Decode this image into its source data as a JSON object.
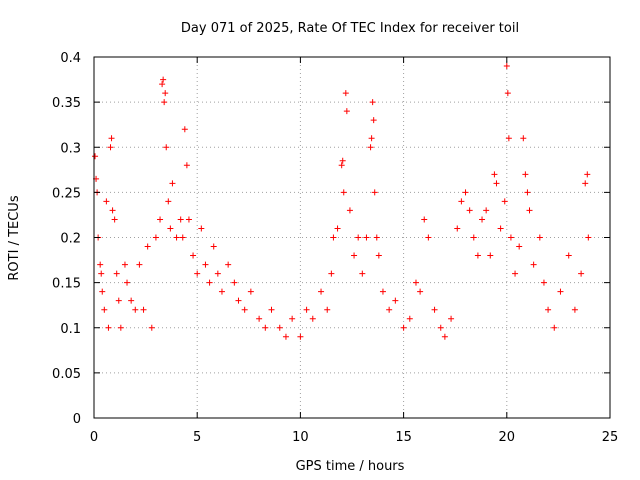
{
  "chart_data": {
    "type": "scatter",
    "title": "Day 071 of 2025, Rate Of TEC Index for receiver toil",
    "xlabel": "GPS time / hours",
    "ylabel": "ROTI / TECUs",
    "xlim": [
      0,
      25
    ],
    "ylim": [
      0,
      0.4
    ],
    "xticks": [
      "0",
      "5",
      "10",
      "15",
      "20",
      "25"
    ],
    "yticks": [
      "0",
      "0.05",
      "0.1",
      "0.15",
      "0.2",
      "0.25",
      "0.3",
      "0.35",
      "0.4"
    ],
    "grid": true,
    "marker": "plus",
    "color": "#ff0000",
    "series": [
      {
        "points": [
          [
            0.05,
            0.29
          ],
          [
            0.1,
            0.265
          ],
          [
            0.15,
            0.25
          ],
          [
            0.2,
            0.2
          ],
          [
            0.3,
            0.17
          ],
          [
            0.35,
            0.16
          ],
          [
            0.4,
            0.14
          ],
          [
            0.5,
            0.12
          ],
          [
            0.6,
            0.24
          ],
          [
            0.7,
            0.1
          ],
          [
            0.8,
            0.3
          ],
          [
            0.85,
            0.31
          ],
          [
            0.9,
            0.23
          ],
          [
            1.0,
            0.22
          ],
          [
            1.1,
            0.16
          ],
          [
            1.2,
            0.13
          ],
          [
            1.3,
            0.1
          ],
          [
            1.5,
            0.17
          ],
          [
            1.6,
            0.15
          ],
          [
            1.8,
            0.13
          ],
          [
            2.0,
            0.12
          ],
          [
            2.2,
            0.17
          ],
          [
            2.4,
            0.12
          ],
          [
            2.6,
            0.19
          ],
          [
            2.8,
            0.1
          ],
          [
            3.0,
            0.2
          ],
          [
            3.2,
            0.22
          ],
          [
            3.3,
            0.37
          ],
          [
            3.35,
            0.375
          ],
          [
            3.4,
            0.35
          ],
          [
            3.45,
            0.36
          ],
          [
            3.5,
            0.3
          ],
          [
            3.6,
            0.24
          ],
          [
            3.7,
            0.21
          ],
          [
            3.8,
            0.26
          ],
          [
            4.0,
            0.2
          ],
          [
            4.2,
            0.22
          ],
          [
            4.3,
            0.2
          ],
          [
            4.4,
            0.32
          ],
          [
            4.5,
            0.28
          ],
          [
            4.6,
            0.22
          ],
          [
            4.8,
            0.18
          ],
          [
            5.0,
            0.16
          ],
          [
            5.2,
            0.21
          ],
          [
            5.4,
            0.17
          ],
          [
            5.6,
            0.15
          ],
          [
            5.8,
            0.19
          ],
          [
            6.0,
            0.16
          ],
          [
            6.2,
            0.14
          ],
          [
            6.5,
            0.17
          ],
          [
            6.8,
            0.15
          ],
          [
            7.0,
            0.13
          ],
          [
            7.3,
            0.12
          ],
          [
            7.6,
            0.14
          ],
          [
            8.0,
            0.11
          ],
          [
            8.3,
            0.1
          ],
          [
            8.6,
            0.12
          ],
          [
            9.0,
            0.1
          ],
          [
            9.3,
            0.09
          ],
          [
            9.6,
            0.11
          ],
          [
            10.0,
            0.09
          ],
          [
            10.3,
            0.12
          ],
          [
            10.6,
            0.11
          ],
          [
            11.0,
            0.14
          ],
          [
            11.3,
            0.12
          ],
          [
            11.5,
            0.16
          ],
          [
            11.6,
            0.2
          ],
          [
            11.8,
            0.21
          ],
          [
            12.0,
            0.28
          ],
          [
            12.05,
            0.285
          ],
          [
            12.1,
            0.25
          ],
          [
            12.2,
            0.36
          ],
          [
            12.25,
            0.34
          ],
          [
            12.4,
            0.23
          ],
          [
            12.6,
            0.18
          ],
          [
            12.8,
            0.2
          ],
          [
            13.0,
            0.16
          ],
          [
            13.2,
            0.2
          ],
          [
            13.4,
            0.3
          ],
          [
            13.45,
            0.31
          ],
          [
            13.5,
            0.35
          ],
          [
            13.55,
            0.33
          ],
          [
            13.6,
            0.25
          ],
          [
            13.7,
            0.2
          ],
          [
            13.8,
            0.18
          ],
          [
            14.0,
            0.14
          ],
          [
            14.3,
            0.12
          ],
          [
            14.6,
            0.13
          ],
          [
            15.0,
            0.1
          ],
          [
            15.3,
            0.11
          ],
          [
            15.6,
            0.15
          ],
          [
            15.8,
            0.14
          ],
          [
            16.0,
            0.22
          ],
          [
            16.2,
            0.2
          ],
          [
            16.5,
            0.12
          ],
          [
            16.8,
            0.1
          ],
          [
            17.0,
            0.09
          ],
          [
            17.3,
            0.11
          ],
          [
            17.6,
            0.21
          ],
          [
            17.8,
            0.24
          ],
          [
            18.0,
            0.25
          ],
          [
            18.2,
            0.23
          ],
          [
            18.4,
            0.2
          ],
          [
            18.6,
            0.18
          ],
          [
            18.8,
            0.22
          ],
          [
            19.0,
            0.23
          ],
          [
            19.2,
            0.18
          ],
          [
            19.4,
            0.27
          ],
          [
            19.5,
            0.26
          ],
          [
            19.7,
            0.21
          ],
          [
            19.9,
            0.24
          ],
          [
            20.0,
            0.39
          ],
          [
            20.05,
            0.36
          ],
          [
            20.1,
            0.31
          ],
          [
            20.2,
            0.2
          ],
          [
            20.4,
            0.16
          ],
          [
            20.6,
            0.19
          ],
          [
            20.8,
            0.31
          ],
          [
            20.9,
            0.27
          ],
          [
            21.0,
            0.25
          ],
          [
            21.1,
            0.23
          ],
          [
            21.3,
            0.17
          ],
          [
            21.6,
            0.2
          ],
          [
            21.8,
            0.15
          ],
          [
            22.0,
            0.12
          ],
          [
            22.3,
            0.1
          ],
          [
            22.6,
            0.14
          ],
          [
            23.0,
            0.18
          ],
          [
            23.3,
            0.12
          ],
          [
            23.6,
            0.16
          ],
          [
            23.8,
            0.26
          ],
          [
            23.9,
            0.27
          ],
          [
            23.95,
            0.2
          ]
        ]
      }
    ]
  }
}
